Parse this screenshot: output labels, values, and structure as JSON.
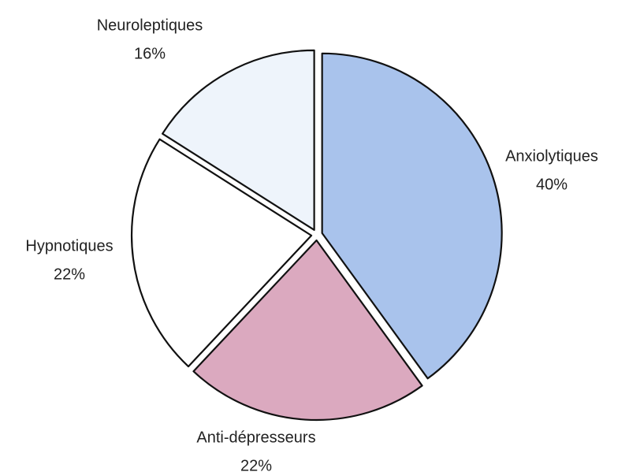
{
  "chart_data": {
    "type": "pie",
    "categories": [
      "Anxiolytiques",
      "Anti-dépresseurs",
      "Hypnotiques",
      "Neuroleptiques"
    ],
    "values": [
      40,
      22,
      22,
      16
    ],
    "value_labels": [
      "40%",
      "22%",
      "22%",
      "16%"
    ],
    "colors": [
      "#a9c3ec",
      "#dba9bf",
      "#ffffff",
      "#eef4fb"
    ]
  }
}
